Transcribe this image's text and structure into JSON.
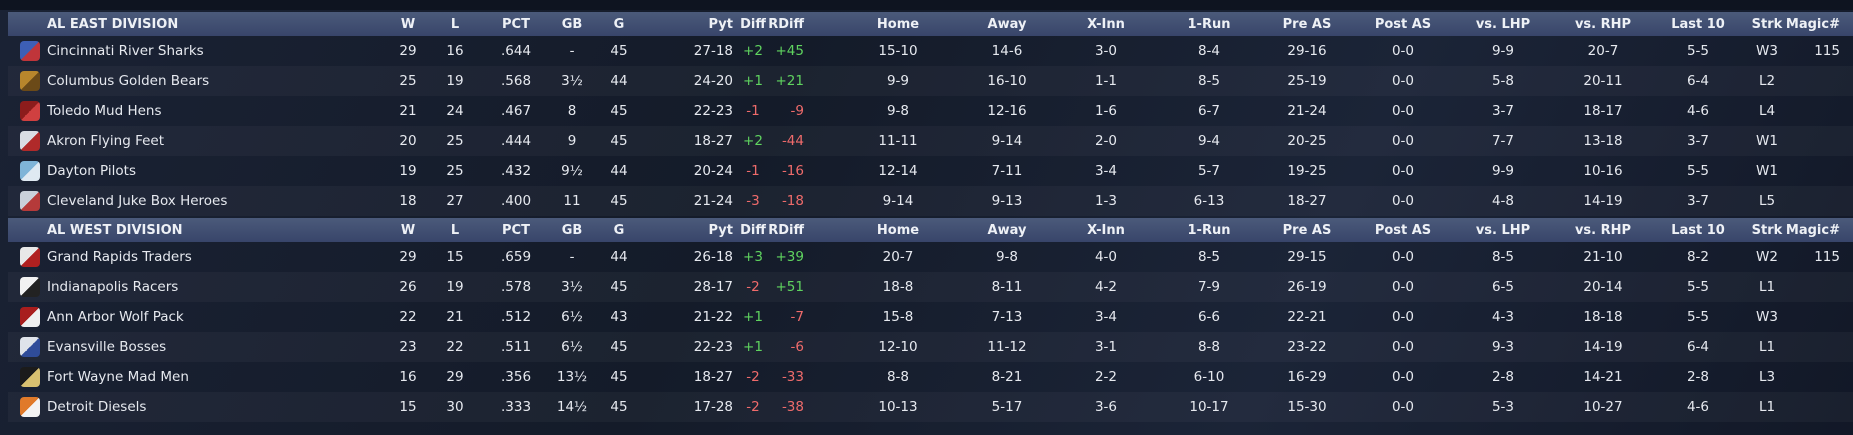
{
  "divisions": [
    {
      "header": [
        "AL EAST DIVISION",
        "W",
        "L",
        "PCT",
        "GB",
        "G",
        "Pyt",
        "Diff",
        "RDiff",
        "Home",
        "Away",
        "X-Inn",
        "1-Run",
        "Pre AS",
        "Post AS",
        "vs. LHP",
        "vs. RHP",
        "Last 10",
        "Strk",
        "Magic#"
      ],
      "rows": [
        [
          "Cincinnati River Sharks",
          "29",
          "16",
          ".644",
          "-",
          "45",
          "27-18",
          "+2",
          "+45",
          "15-10",
          "14-6",
          "3-0",
          "8-4",
          "29-16",
          "0-0",
          "9-9",
          "20-7",
          "5-5",
          "W3",
          "115"
        ],
        [
          "Columbus Golden Bears",
          "25",
          "19",
          ".568",
          "3½",
          "44",
          "24-20",
          "+1",
          "+21",
          "9-9",
          "16-10",
          "1-1",
          "8-5",
          "25-19",
          "0-0",
          "5-8",
          "20-11",
          "6-4",
          "L2"
        ],
        [
          "Toledo  Mud Hens",
          "21",
          "24",
          ".467",
          "8",
          "45",
          "22-23",
          "-1",
          "-9",
          "9-8",
          "12-16",
          "1-6",
          "6-7",
          "21-24",
          "0-0",
          "3-7",
          "18-17",
          "4-6",
          "L4"
        ],
        [
          "Akron  Flying Feet",
          "20",
          "25",
          ".444",
          "9",
          "45",
          "18-27",
          "+2",
          "-44",
          "11-11",
          "9-14",
          "2-0",
          "9-4",
          "20-25",
          "0-0",
          "7-7",
          "13-18",
          "3-7",
          "W1"
        ],
        [
          "Dayton Pilots",
          "19",
          "25",
          ".432",
          "9½",
          "44",
          "20-24",
          "-1",
          "-16",
          "12-14",
          "7-11",
          "3-4",
          "5-7",
          "19-25",
          "0-0",
          "9-9",
          "10-16",
          "5-5",
          "W1"
        ],
        [
          "Cleveland Juke Box Heroes",
          "18",
          "27",
          ".400",
          "11",
          "45",
          "21-24",
          "-3",
          "-18",
          "9-14",
          "9-13",
          "1-3",
          "6-13",
          "18-27",
          "0-0",
          "4-8",
          "14-19",
          "3-7",
          "L5"
        ]
      ]
    },
    {
      "header": [
        "AL WEST DIVISION",
        "W",
        "L",
        "PCT",
        "GB",
        "G",
        "Pyt",
        "Diff",
        "RDiff",
        "Home",
        "Away",
        "X-Inn",
        "1-Run",
        "Pre AS",
        "Post AS",
        "vs. LHP",
        "vs. RHP",
        "Last 10",
        "Strk",
        "Magic#"
      ],
      "rows": [
        [
          "Grand Rapids Traders",
          "29",
          "15",
          ".659",
          "-",
          "44",
          "26-18",
          "+3",
          "+39",
          "20-7",
          "9-8",
          "4-0",
          "8-5",
          "29-15",
          "0-0",
          "8-5",
          "21-10",
          "8-2",
          "W2",
          "115"
        ],
        [
          "Indianapolis Racers",
          "26",
          "19",
          ".578",
          "3½",
          "45",
          "28-17",
          "-2",
          "+51",
          "18-8",
          "8-11",
          "4-2",
          "7-9",
          "26-19",
          "0-0",
          "6-5",
          "20-14",
          "5-5",
          "L1"
        ],
        [
          "Ann Arbor Wolf Pack",
          "22",
          "21",
          ".512",
          "6½",
          "43",
          "21-22",
          "+1",
          "-7",
          "15-8",
          "7-13",
          "3-4",
          "6-6",
          "22-21",
          "0-0",
          "4-3",
          "18-18",
          "5-5",
          "W3"
        ],
        [
          "Evansville Bosses",
          "23",
          "22",
          ".511",
          "6½",
          "45",
          "22-23",
          "+1",
          "-6",
          "12-10",
          "11-12",
          "3-1",
          "8-8",
          "23-22",
          "0-0",
          "9-3",
          "14-19",
          "6-4",
          "L1"
        ],
        [
          "Fort Wayne Mad Men",
          "16",
          "29",
          ".356",
          "13½",
          "45",
          "18-27",
          "-2",
          "-33",
          "8-8",
          "8-21",
          "2-2",
          "6-10",
          "16-29",
          "0-0",
          "2-8",
          "14-21",
          "2-8",
          "L3"
        ],
        [
          "Detroit Diesels",
          "15",
          "30",
          ".333",
          "14½",
          "45",
          "17-28",
          "-2",
          "-38",
          "10-13",
          "5-17",
          "3-6",
          "10-17",
          "15-30",
          "0-0",
          "5-3",
          "10-27",
          "4-6",
          "L1"
        ]
      ]
    }
  ]
}
